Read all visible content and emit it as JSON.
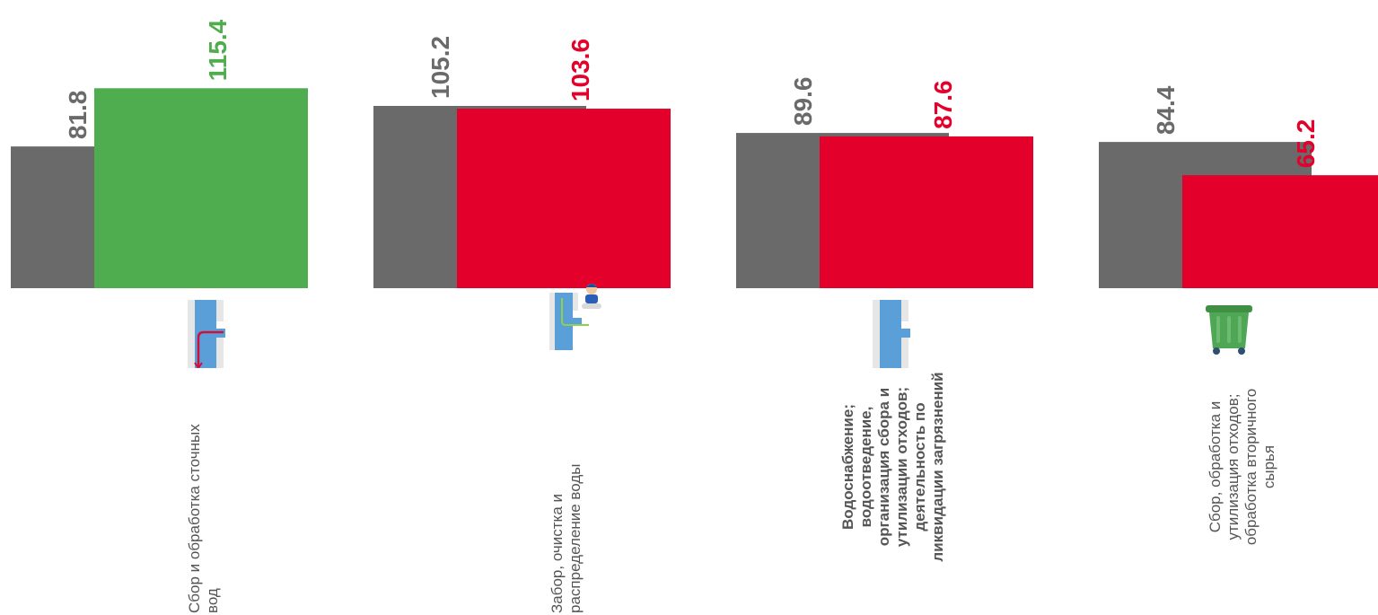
{
  "chart_data": {
    "type": "bar",
    "categories": [
      {
        "label_lines": [
          "Сбор и обработка сточных",
          "вод"
        ],
        "bold": false,
        "icon": "sewage-pipe-icon"
      },
      {
        "label_lines": [
          "Забор, очистка и",
          "распределение воды"
        ],
        "bold": false,
        "icon": "water-intake-worker-icon"
      },
      {
        "label_lines": [
          "Водоснабжение;",
          "водоотведение,",
          "организация сбора и",
          "утилизации отходов;",
          "деятельность по",
          "ликвидации загрязнений"
        ],
        "bold": true,
        "icon": "water-pipe-icon"
      },
      {
        "label_lines": [
          "Сбор, обработка и",
          "утилизация отходов;",
          "обработка вторичного",
          "сырья"
        ],
        "bold": false,
        "icon": "waste-container-icon"
      }
    ],
    "series": [
      {
        "values": [
          81.8,
          105.2,
          89.6,
          84.4
        ],
        "labels": [
          "81.8",
          "105.2",
          "89.6",
          "84.4"
        ]
      },
      {
        "values": [
          115.4,
          103.6,
          87.6,
          65.2
        ],
        "labels": [
          "115.4",
          "103.6",
          "87.6",
          "65.2"
        ]
      }
    ],
    "ylim": [
      0,
      130
    ],
    "colors": {
      "base": "#6a6a6a",
      "increase": "#4fad4f",
      "decrease": "#e3002b",
      "base_label": "#6a6a6a"
    }
  }
}
